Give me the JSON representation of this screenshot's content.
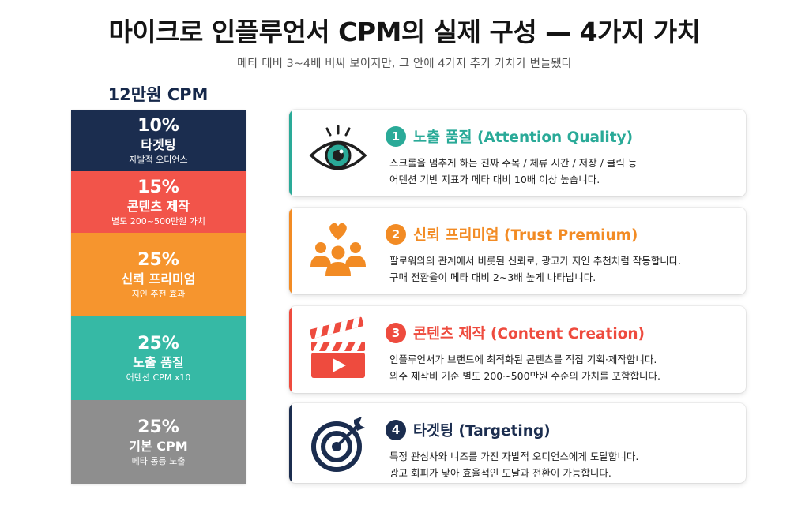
{
  "header": {
    "title": "마이크로 인플루언서 CPM의 실제 구성 — 4가지 가치",
    "subtitle": "메타 대비 3~4배 비싸 보이지만, 그 안에 4가지 추가 가치가 번들됐다"
  },
  "stack": {
    "title": "12만원 CPM",
    "segments": [
      {
        "pct": "10%",
        "name": "타겟팅",
        "note": "자발적 오디언스",
        "share": 10,
        "color": "#1b2d4f"
      },
      {
        "pct": "15%",
        "name": "콘텐츠 제작",
        "note": "별도 200~500만원 가치",
        "share": 15,
        "color": "#f2544a"
      },
      {
        "pct": "25%",
        "name": "신뢰 프리미엄",
        "note": "지인 추천 효과",
        "share": 25,
        "color": "#f6952e"
      },
      {
        "pct": "25%",
        "name": "노출 품질",
        "note": "어텐션 CPM x10",
        "share": 25,
        "color": "#36b9a5"
      },
      {
        "pct": "25%",
        "name": "기본 CPM",
        "note": "메타 동등 노출",
        "share": 25,
        "color": "#8e8e8e"
      }
    ]
  },
  "cards": [
    {
      "number": "1",
      "title": "노출 품질 (Attention Quality)",
      "line1": "스크롤을 멈추게 하는 진짜 주목 / 체류 시간 / 저장 / 클릭 등",
      "line2": "어텐션 기반 지표가 메타 대비 10배 이상 높습니다.",
      "color": "#2aaa98",
      "icon": "eye-icon"
    },
    {
      "number": "2",
      "title": "신뢰 프리미엄 (Trust Premium)",
      "line1": "팔로워와의 관계에서 비롯된 신뢰로, 광고가 지인 추천처럼 작동합니다.",
      "line2": "구매 전환율이 메타 대비 2~3배 높게 나타납니다.",
      "color": "#f28b24",
      "icon": "people-heart-icon"
    },
    {
      "number": "3",
      "title": "콘텐츠 제작 (Content Creation)",
      "line1": "인플루언서가 브랜드에 최적화된 콘텐츠를 직접 기획·제작합니다.",
      "line2": "외주 제작비 기준 별도 200~500만원 수준의 가치를 포함합니다.",
      "color": "#ee4b3e",
      "icon": "clapperboard-icon"
    },
    {
      "number": "4",
      "title": "타겟팅 (Targeting)",
      "line1": "특정 관심사와 니즈를 가진 자발적 오디언스에게 도달합니다.",
      "line2": "광고 회피가 낮아 효율적인 도달과 전환이 가능합니다.",
      "color": "#1b2d4f",
      "icon": "target-icon"
    }
  ]
}
